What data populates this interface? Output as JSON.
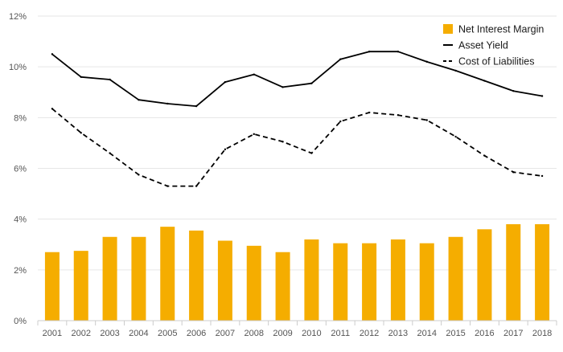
{
  "chart_data": {
    "type": "bar",
    "categories": [
      "2001",
      "2002",
      "2003",
      "2004",
      "2005",
      "2006",
      "2007",
      "2008",
      "2009",
      "2010",
      "2011",
      "2012",
      "2013",
      "2014",
      "2015",
      "2016",
      "2017",
      "2018"
    ],
    "y_ticks": [
      "0%",
      "2%",
      "4%",
      "6%",
      "8%",
      "10%",
      "12%"
    ],
    "ylim": [
      0,
      12
    ],
    "grid": true,
    "legend_position": "top-right",
    "series": [
      {
        "name": "Net Interest Margin",
        "kind": "bar",
        "color": "#f5ad00",
        "values": [
          2.7,
          2.75,
          3.3,
          3.3,
          3.7,
          3.55,
          3.15,
          2.95,
          2.7,
          3.2,
          3.05,
          3.05,
          3.2,
          3.05,
          3.3,
          3.6,
          3.8,
          3.8
        ]
      },
      {
        "name": "Asset Yield",
        "kind": "line",
        "style": "solid",
        "color": "#000000",
        "values": [
          10.5,
          9.6,
          9.5,
          8.7,
          8.55,
          8.45,
          9.4,
          9.7,
          9.2,
          9.35,
          10.3,
          10.6,
          10.6,
          10.2,
          9.85,
          9.45,
          9.05,
          8.85
        ]
      },
      {
        "name": "Cost of Liabilities",
        "kind": "line",
        "style": "dashed",
        "color": "#000000",
        "values": [
          8.35,
          7.4,
          6.6,
          5.75,
          5.3,
          5.3,
          6.75,
          7.35,
          7.05,
          6.6,
          7.85,
          8.2,
          8.1,
          7.9,
          7.25,
          6.5,
          5.85,
          5.7
        ]
      }
    ]
  }
}
